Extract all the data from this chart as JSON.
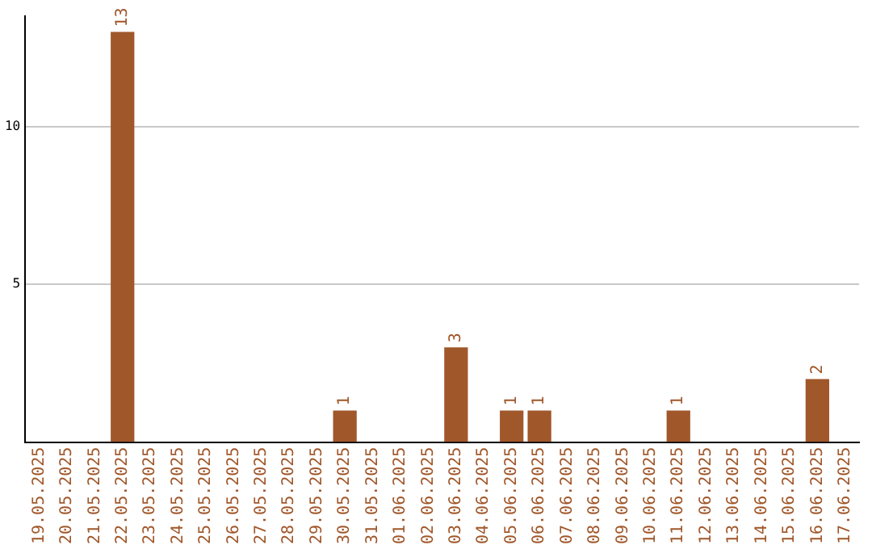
{
  "chart_data": {
    "type": "bar",
    "categories": [
      "19.05.2025",
      "20.05.2025",
      "21.05.2025",
      "22.05.2025",
      "23.05.2025",
      "24.05.2025",
      "25.05.2025",
      "26.05.2025",
      "27.05.2025",
      "28.05.2025",
      "29.05.2025",
      "30.05.2025",
      "31.05.2025",
      "01.06.2025",
      "02.06.2025",
      "03.06.2025",
      "04.06.2025",
      "05.06.2025",
      "06.06.2025",
      "07.06.2025",
      "08.06.2025",
      "09.06.2025",
      "10.06.2025",
      "11.06.2025",
      "12.06.2025",
      "13.06.2025",
      "14.06.2025",
      "15.06.2025",
      "16.06.2025",
      "17.06.2025"
    ],
    "values": [
      0,
      0,
      0,
      13,
      0,
      0,
      0,
      0,
      0,
      0,
      0,
      1,
      0,
      0,
      0,
      3,
      0,
      1,
      1,
      0,
      0,
      0,
      0,
      1,
      0,
      0,
      0,
      0,
      2,
      0
    ],
    "value_labels": [
      null,
      null,
      null,
      "13",
      null,
      null,
      null,
      null,
      null,
      null,
      null,
      "1",
      null,
      null,
      null,
      "3",
      null,
      "1",
      "1",
      null,
      null,
      null,
      null,
      "1",
      null,
      null,
      null,
      null,
      "2",
      null
    ],
    "color": "#a0572a",
    "ylim": [
      0,
      13.5
    ],
    "yticks": [
      5,
      10
    ],
    "grid": "y",
    "legend": false
  }
}
